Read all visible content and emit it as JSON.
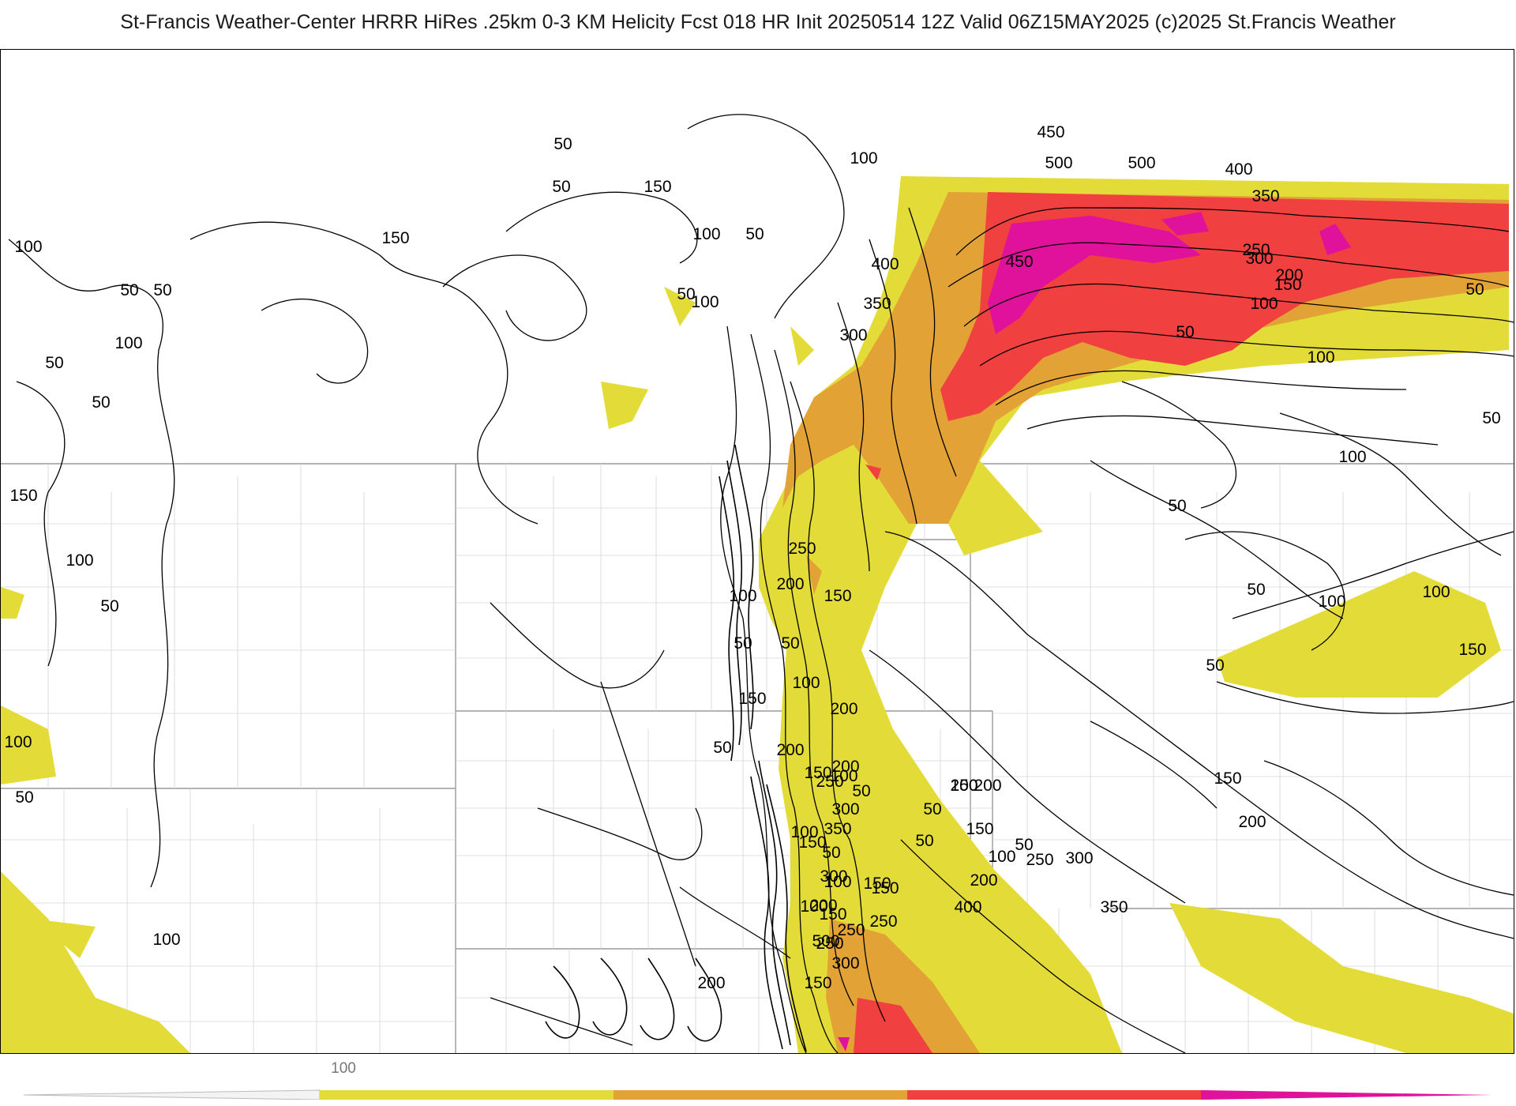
{
  "title": "St-Francis Weather-Center HRRR HiRes .25km 0-3 KM Helicity Fcst 018 HR Init 20250514 12Z  Valid 06Z15MAY2025    (c)2025 St.Francis Weather",
  "colors": {
    "lvl1": "#e3dc38",
    "lvl2": "#e2a236",
    "lvl3": "#f04040",
    "lvl4": "#e0119a",
    "contour": "#000000",
    "border": "#9a9a9a"
  },
  "colorbar": {
    "tick_label": "100",
    "segments": [
      "#e3dc38",
      "#e2a236",
      "#f04040",
      "#e0119a"
    ]
  },
  "contour_labels": [
    "50",
    "150",
    "100",
    "50",
    "100",
    "50",
    "100",
    "50",
    "150",
    "50",
    "100",
    "50",
    "100",
    "50",
    "50",
    "150",
    "100",
    "50",
    "100",
    "50",
    "100",
    "150",
    "200",
    "250",
    "300",
    "350",
    "300",
    "250",
    "200",
    "150",
    "100",
    "50",
    "50",
    "100",
    "150",
    "200",
    "250",
    "300",
    "350",
    "400",
    "450",
    "500",
    "500",
    "450",
    "400",
    "350",
    "300",
    "250",
    "200",
    "150",
    "100",
    "50",
    "50",
    "100",
    "50",
    "100",
    "50",
    "100",
    "50",
    "150",
    "100",
    "50",
    "150",
    "200",
    "250",
    "300",
    "350",
    "400",
    "500",
    "250",
    "200",
    "150",
    "100",
    "50",
    "150",
    "100",
    "200",
    "50",
    "50",
    "100",
    "150",
    "200",
    "250",
    "300",
    "150",
    "100",
    "50",
    "200",
    "150",
    "100",
    "50",
    "200",
    "150",
    "50",
    "200",
    "150"
  ]
}
